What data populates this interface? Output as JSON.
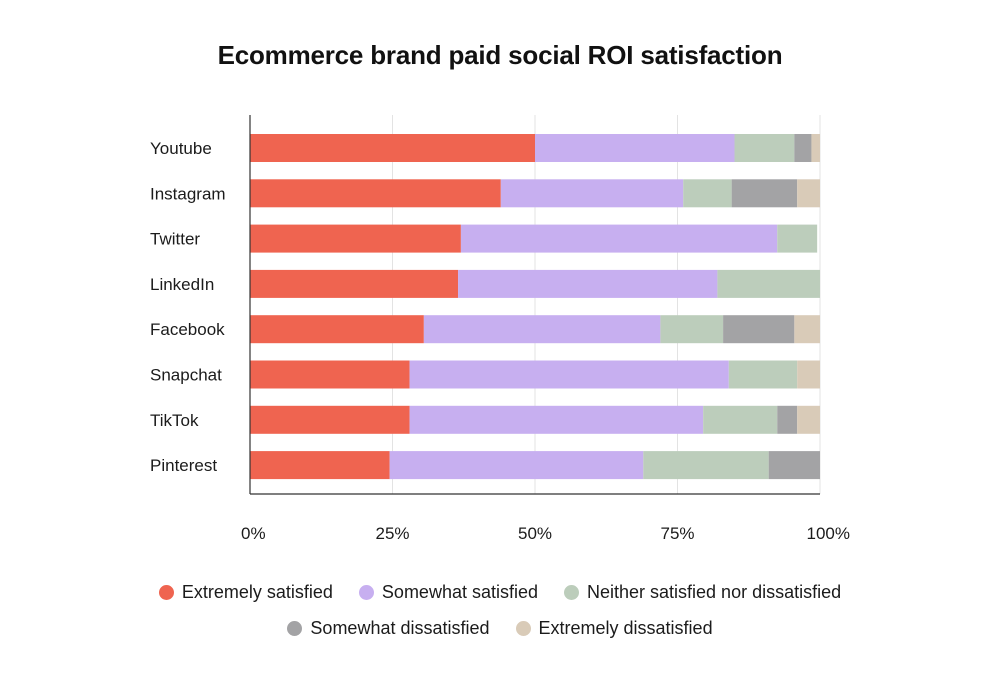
{
  "chart_data": {
    "type": "bar",
    "orientation": "horizontal",
    "stacked": true,
    "title": "Ecommerce brand paid social ROI satisfaction",
    "categories": [
      "Youtube",
      "Instagram",
      "Twitter",
      "LinkedIn",
      "Facebook",
      "Snapchat",
      "TikTok",
      "Pinterest"
    ],
    "series": [
      {
        "name": "Extremely satisfied",
        "color": "#ef6450",
        "values": [
          50,
          44,
          37,
          36.5,
          30.5,
          28,
          28,
          24.5
        ]
      },
      {
        "name": "Somewhat satisfied",
        "color": "#c7aff0",
        "values": [
          35,
          32,
          55.5,
          45.5,
          41.5,
          56,
          51.5,
          44.5
        ]
      },
      {
        "name": "Neither satisfied nor dissatisfied",
        "color": "#bccdbb",
        "values": [
          10.5,
          8.5,
          7,
          18,
          11,
          12,
          13,
          22
        ]
      },
      {
        "name": "Somewhat dissatisfied",
        "color": "#a3a3a5",
        "values": [
          3,
          11.5,
          0,
          0,
          12.5,
          0,
          3.5,
          9
        ]
      },
      {
        "name": "Extremely dissatisfied",
        "color": "#d9cbb8",
        "values": [
          1.5,
          4,
          0,
          0,
          4.5,
          4,
          4,
          0
        ]
      }
    ],
    "xlim": [
      0,
      100
    ],
    "x_ticks": [
      "0%",
      "25%",
      "50%",
      "75%",
      "100%"
    ],
    "xlabel": "",
    "ylabel": "",
    "grid": true,
    "legend_position": "bottom"
  }
}
